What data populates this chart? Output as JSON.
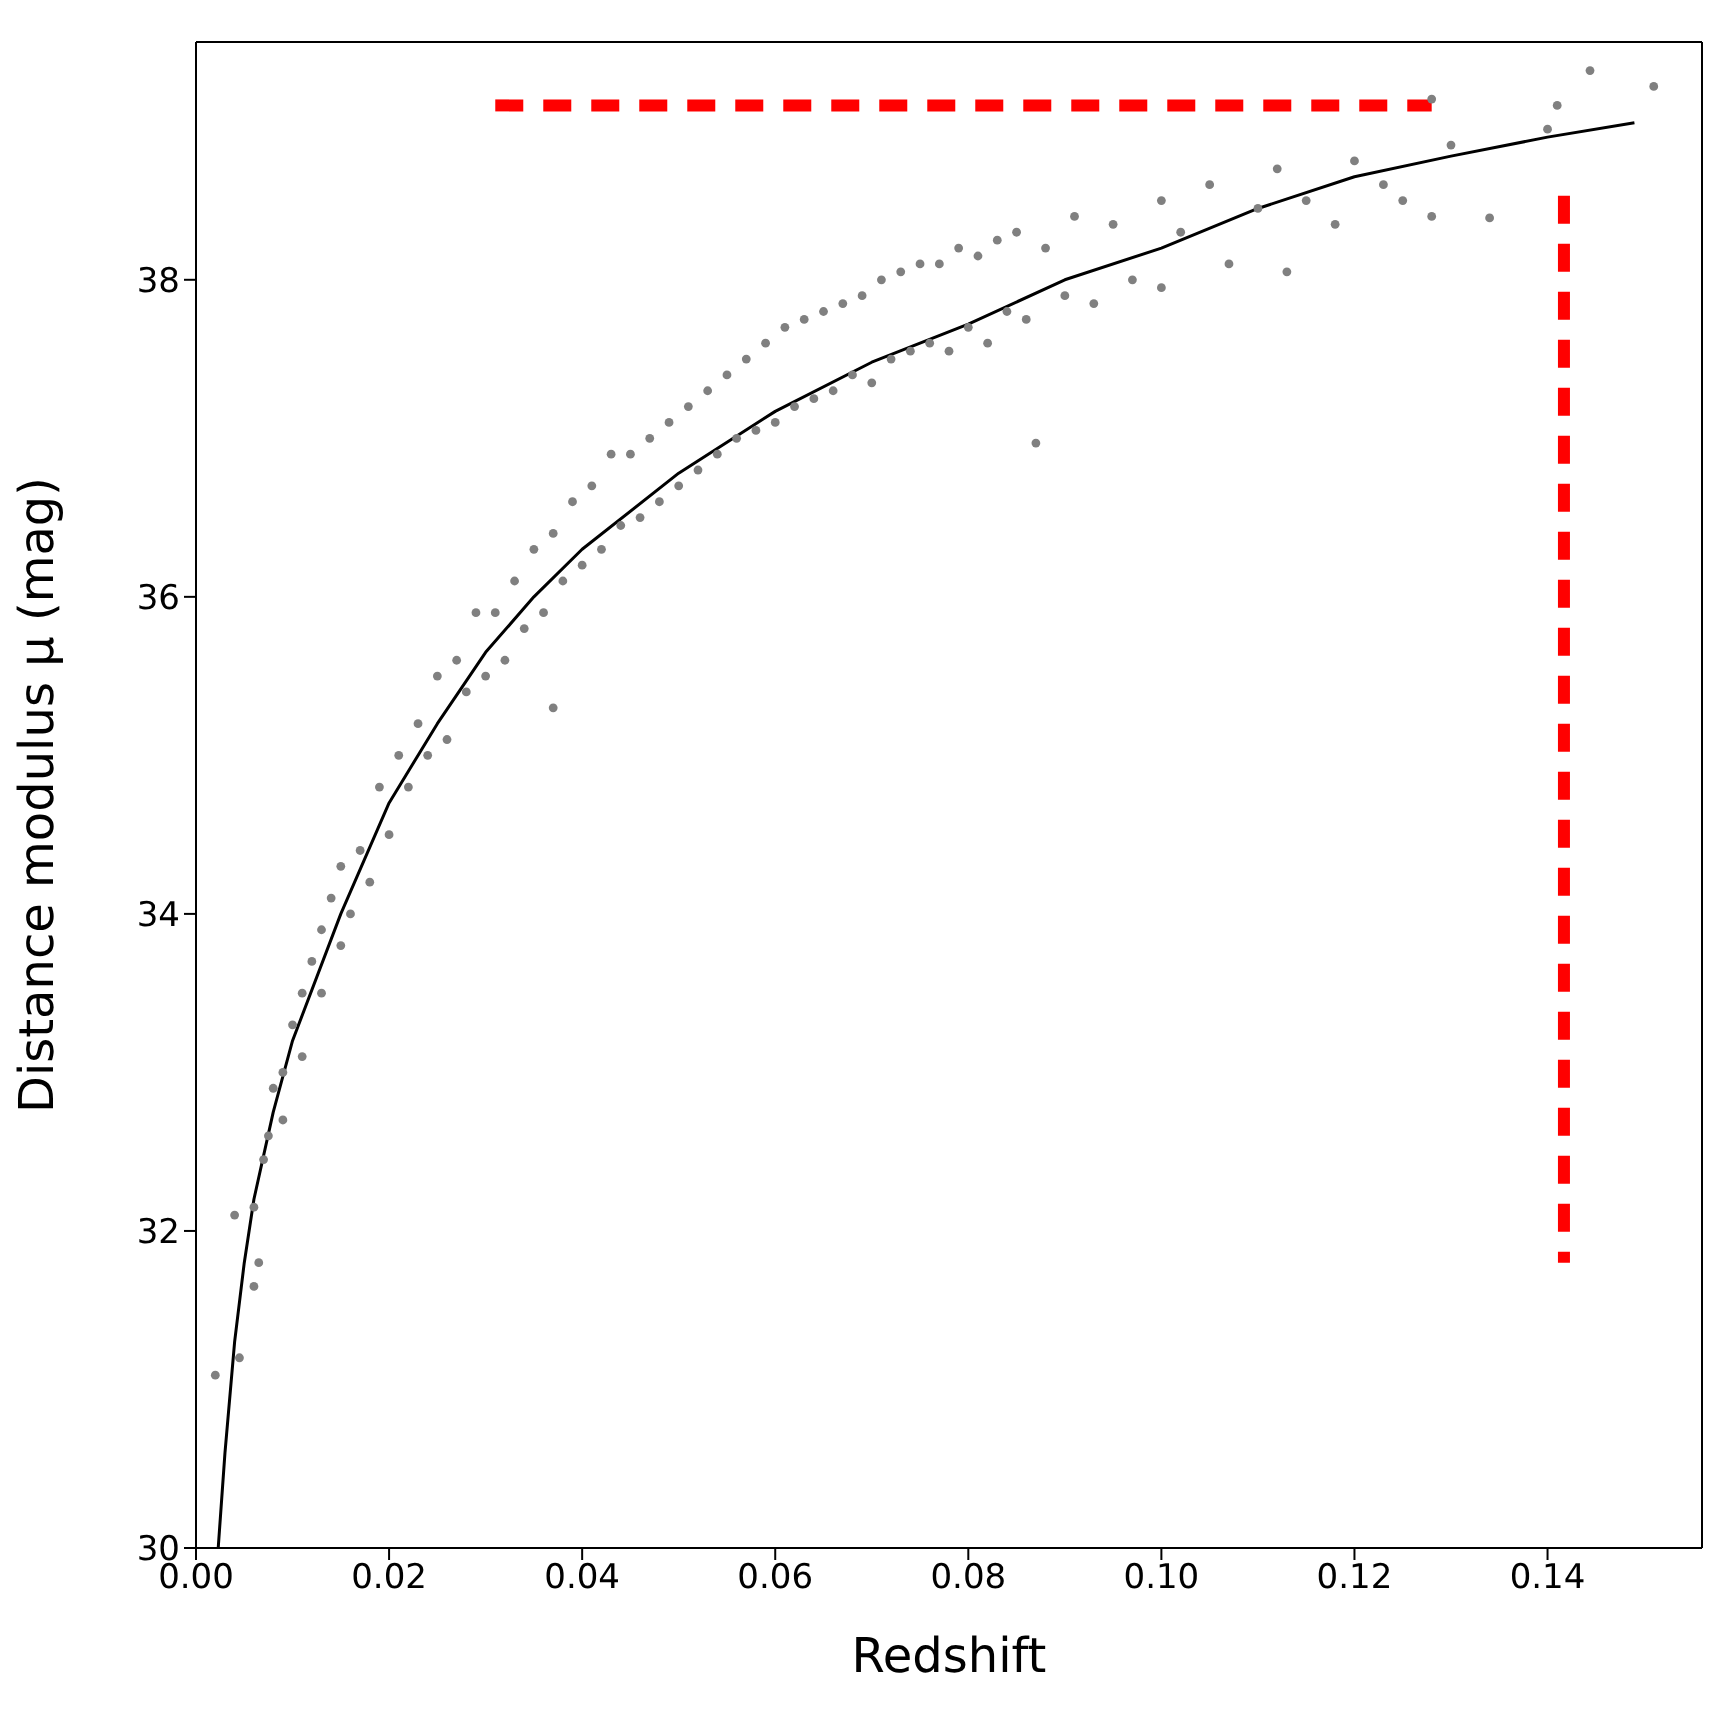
{
  "chart_data": {
    "type": "scatter",
    "xlabel": "Redshift",
    "ylabel": "Distance modulus μ (mag)",
    "xlim": [
      0,
      0.156
    ],
    "ylim": [
      30,
      39.5
    ],
    "xticks": [
      {
        "value": 0,
        "label": "0.00"
      },
      {
        "value": 0.02,
        "label": "0.02"
      },
      {
        "value": 0.04,
        "label": "0.04"
      },
      {
        "value": 0.06,
        "label": "0.06"
      },
      {
        "value": 0.08,
        "label": "0.08"
      },
      {
        "value": 0.1,
        "label": "0.10"
      },
      {
        "value": 0.12,
        "label": "0.12"
      },
      {
        "value": 0.14,
        "label": "0.14"
      }
    ],
    "yticks": [
      30,
      32,
      34,
      36,
      38
    ],
    "series": [
      {
        "color": "#808080",
        "marker": "circle",
        "x": [
          0.002,
          0.004,
          0.0045,
          0.006,
          0.0065,
          0.006,
          0.007,
          0.0075,
          0.008,
          0.009,
          0.009,
          0.01,
          0.011,
          0.011,
          0.012,
          0.013,
          0.013,
          0.014,
          0.015,
          0.015,
          0.016,
          0.017,
          0.018,
          0.019,
          0.02,
          0.021,
          0.022,
          0.023,
          0.024,
          0.025,
          0.026,
          0.027,
          0.028,
          0.029,
          0.03,
          0.031,
          0.032,
          0.033,
          0.034,
          0.035,
          0.036,
          0.037,
          0.037,
          0.038,
          0.039,
          0.04,
          0.041,
          0.042,
          0.043,
          0.044,
          0.045,
          0.046,
          0.047,
          0.048,
          0.049,
          0.05,
          0.051,
          0.052,
          0.053,
          0.054,
          0.055,
          0.056,
          0.057,
          0.058,
          0.059,
          0.06,
          0.061,
          0.062,
          0.063,
          0.064,
          0.065,
          0.066,
          0.067,
          0.068,
          0.069,
          0.07,
          0.071,
          0.072,
          0.073,
          0.074,
          0.075,
          0.076,
          0.077,
          0.078,
          0.079,
          0.08,
          0.081,
          0.082,
          0.083,
          0.084,
          0.085,
          0.086,
          0.087,
          0.088,
          0.09,
          0.091,
          0.093,
          0.095,
          0.097,
          0.1,
          0.1,
          0.102,
          0.105,
          0.107,
          0.11,
          0.112,
          0.113,
          0.115,
          0.118,
          0.12,
          0.123,
          0.125,
          0.128,
          0.128,
          0.13,
          0.134,
          0.14,
          0.141,
          0.1444,
          0.151
        ],
        "values": [
          31.09,
          32.1,
          31.2,
          31.65,
          31.8,
          32.15,
          32.45,
          32.6,
          32.9,
          33.0,
          32.7,
          33.3,
          33.5,
          33.1,
          33.7,
          33.5,
          33.9,
          34.1,
          33.8,
          34.3,
          34.0,
          34.4,
          34.2,
          34.8,
          34.5,
          35.0,
          34.8,
          35.2,
          35.0,
          35.5,
          35.1,
          35.6,
          35.4,
          35.9,
          35.5,
          35.9,
          35.6,
          36.1,
          35.8,
          36.3,
          35.9,
          35.3,
          36.4,
          36.1,
          36.6,
          36.2,
          36.7,
          36.3,
          36.9,
          36.45,
          36.9,
          36.5,
          37.0,
          36.6,
          37.1,
          36.7,
          37.2,
          36.8,
          37.3,
          36.9,
          37.4,
          37.0,
          37.5,
          37.05,
          37.6,
          37.1,
          37.7,
          37.2,
          37.75,
          37.25,
          37.8,
          37.3,
          37.85,
          37.4,
          37.9,
          37.35,
          38.0,
          37.5,
          38.05,
          37.55,
          38.1,
          37.6,
          38.1,
          37.55,
          38.2,
          37.7,
          38.15,
          37.6,
          38.25,
          37.8,
          38.3,
          37.75,
          36.97,
          38.2,
          37.9,
          38.4,
          37.85,
          38.35,
          38.0,
          38.5,
          37.95,
          38.3,
          38.6,
          38.1,
          38.45,
          38.7,
          38.05,
          38.5,
          38.35,
          38.75,
          38.6,
          38.5,
          38.4,
          39.14,
          38.85,
          38.39,
          38.95,
          39.1,
          39.32,
          39.22
        ]
      },
      {
        "type": "line",
        "color": "#000000",
        "marker": "none",
        "line_style": "solid",
        "x": [
          0.0023,
          0.003,
          0.004,
          0.005,
          0.006,
          0.008,
          0.01,
          0.015,
          0.02,
          0.025,
          0.03,
          0.035,
          0.04,
          0.05,
          0.06,
          0.07,
          0.08,
          0.09,
          0.1,
          0.11,
          0.12,
          0.13,
          0.14,
          0.149
        ],
        "values": [
          30.0,
          30.6,
          31.3,
          31.8,
          32.2,
          32.75,
          33.2,
          34.0,
          34.7,
          35.2,
          35.65,
          36.0,
          36.3,
          36.78,
          37.17,
          37.48,
          37.72,
          38.0,
          38.2,
          38.45,
          38.65,
          38.78,
          38.9,
          38.99
        ]
      },
      {
        "type": "line",
        "color": "#ff0000",
        "marker": "none",
        "line_style": "dashed",
        "x": [
          0.031,
          0.128
        ],
        "values": [
          39.1,
          39.1
        ]
      },
      {
        "type": "line",
        "color": "#ff0000",
        "marker": "none",
        "line_style": "dashed",
        "x": [
          0.1417,
          0.1417
        ],
        "values": [
          38.53,
          31.8
        ]
      }
    ]
  }
}
